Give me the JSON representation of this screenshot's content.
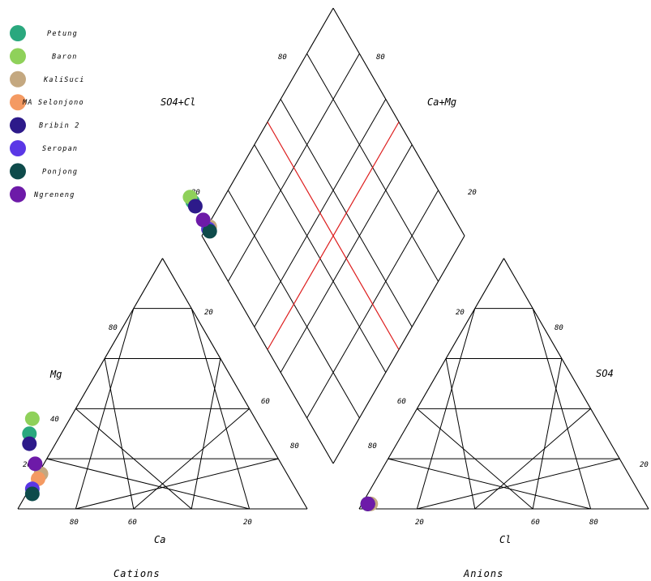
{
  "chart_data": {
    "type": "scatter",
    "subtype": "piper-trilinear",
    "titles": {
      "cations": "Cations",
      "anions": "Anions"
    },
    "axis_labels": {
      "cation_left": "Mg",
      "cation_bottom": "Ca",
      "anion_right": "SO4",
      "anion_bottom": "Cl",
      "diamond_left": "SO4+Cl",
      "diamond_right": "Ca+Mg"
    },
    "tick_labels": {
      "cation_left": [
        "20",
        "40",
        "80"
      ],
      "cation_right": [
        "20",
        "60",
        "80"
      ],
      "cation_bottom": [
        "80",
        "60",
        "20"
      ],
      "anion_left": [
        "20",
        "60",
        "80"
      ],
      "anion_right": [
        "80",
        "20"
      ],
      "anion_bottom": [
        "20",
        "60",
        "80"
      ],
      "diamond_upper_left": [
        "80",
        "20"
      ],
      "diamond_upper_right": [
        "80",
        "20"
      ]
    },
    "legend_position": "top-left",
    "samples": [
      {
        "name": "Petung",
        "color": "#2aa87e",
        "ca": 81,
        "mg": 30,
        "cl": 2,
        "so4": 2
      },
      {
        "name": "Baron",
        "color": "#8fd15a",
        "ca": 77,
        "mg": 36,
        "cl": 2,
        "so4": 2
      },
      {
        "name": "KaliSuci",
        "color": "#c4a880",
        "ca": 85,
        "mg": 14,
        "cl": 3,
        "so4": 2
      },
      {
        "name": "MA Selonjono",
        "color": "#f49a62",
        "ca": 87,
        "mg": 12,
        "cl": 2,
        "so4": 2
      },
      {
        "name": "Bribin 2",
        "color": "#2d1a8a",
        "ca": 83,
        "mg": 26,
        "cl": 2,
        "so4": 2
      },
      {
        "name": "Seropan",
        "color": "#5a37e6",
        "ca": 91,
        "mg": 8,
        "cl": 2,
        "so4": 2
      },
      {
        "name": "Ponjong",
        "color": "#0e4b4b",
        "ca": 92,
        "mg": 6,
        "cl": 2,
        "so4": 2
      },
      {
        "name": "Ngreneng",
        "color": "#6d1aa8",
        "ca": 85,
        "mg": 18,
        "cl": 2,
        "so4": 2
      }
    ]
  }
}
